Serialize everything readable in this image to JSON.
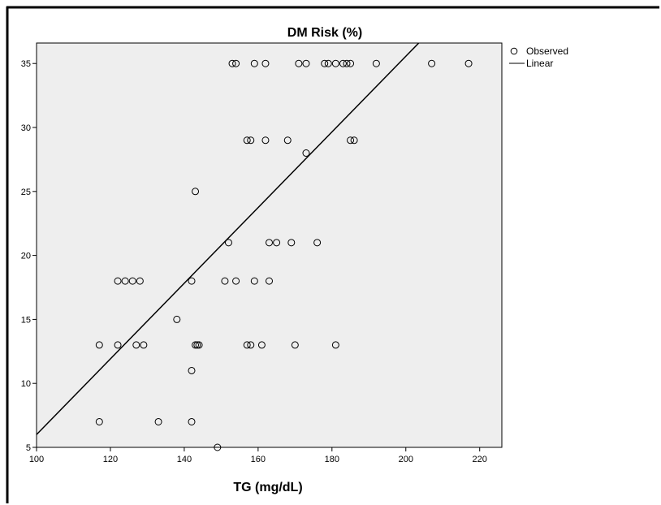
{
  "chart_data": {
    "type": "scatter",
    "title": "DM Risk (%)",
    "xlabel": "TG (mg/dL)",
    "ylabel": "",
    "xlim": [
      100,
      226
    ],
    "ylim": [
      5,
      36.6
    ],
    "xticks": [
      "100",
      "120",
      "140",
      "160",
      "180",
      "200",
      "220"
    ],
    "yticks": [
      "5",
      "10",
      "15",
      "20",
      "25",
      "30",
      "35"
    ],
    "grid": false,
    "legend_position": "top-right",
    "legend": [
      "Observed",
      "Linear"
    ],
    "colors": {
      "plot_bg": "#eeeeee",
      "marker": "#000000",
      "line": "#000000"
    },
    "series": [
      {
        "name": "Observed",
        "points": [
          [
            149,
            5
          ],
          [
            117,
            7
          ],
          [
            133,
            7
          ],
          [
            142,
            7
          ],
          [
            142,
            11
          ],
          [
            117,
            13
          ],
          [
            122,
            13
          ],
          [
            127,
            13
          ],
          [
            129,
            13
          ],
          [
            143,
            13
          ],
          [
            143.5,
            13
          ],
          [
            144,
            13
          ],
          [
            157,
            13
          ],
          [
            158,
            13
          ],
          [
            161,
            13
          ],
          [
            170,
            13
          ],
          [
            181,
            13
          ],
          [
            138,
            15
          ],
          [
            122,
            18
          ],
          [
            124,
            18
          ],
          [
            126,
            18
          ],
          [
            128,
            18
          ],
          [
            142,
            18
          ],
          [
            151,
            18
          ],
          [
            154,
            18
          ],
          [
            159,
            18
          ],
          [
            163,
            18
          ],
          [
            152,
            21
          ],
          [
            163,
            21
          ],
          [
            165,
            21
          ],
          [
            169,
            21
          ],
          [
            176,
            21
          ],
          [
            143,
            25
          ],
          [
            173,
            28
          ],
          [
            157,
            29
          ],
          [
            158,
            29
          ],
          [
            162,
            29
          ],
          [
            168,
            29
          ],
          [
            185,
            29
          ],
          [
            186,
            29
          ],
          [
            153,
            35
          ],
          [
            154,
            35
          ],
          [
            159,
            35
          ],
          [
            162,
            35
          ],
          [
            171,
            35
          ],
          [
            173,
            35
          ],
          [
            178,
            35
          ],
          [
            179,
            35
          ],
          [
            181,
            35
          ],
          [
            183,
            35
          ],
          [
            184,
            35
          ],
          [
            185,
            35
          ],
          [
            192,
            35
          ],
          [
            207,
            35
          ],
          [
            217,
            35
          ]
        ]
      },
      {
        "name": "Linear",
        "type": "line",
        "points": [
          [
            100,
            6
          ],
          [
            203.5,
            36.6
          ]
        ]
      }
    ]
  }
}
